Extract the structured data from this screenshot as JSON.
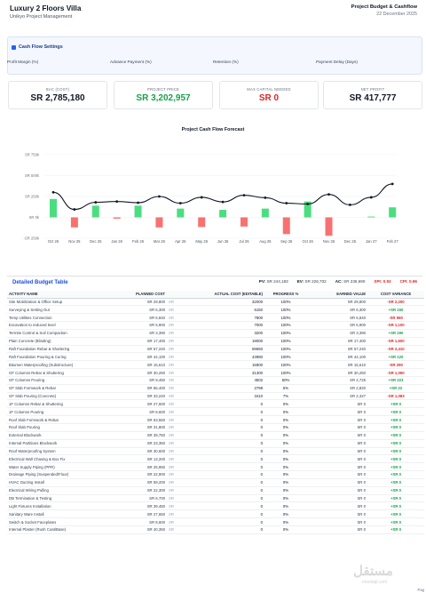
{
  "header": {
    "title": "Luxury 2 Floors Villa",
    "subtitle": "Unikyo Project Management",
    "report_title": "Project Budget & Cashflow",
    "date": "22 December 2025"
  },
  "settings": {
    "title": "Cash Flow Settings",
    "labels": [
      "Profit Margin (%)",
      "Advance Payment (%)",
      "Retention (%)",
      "Payment Delay (Days)"
    ]
  },
  "cards": [
    {
      "label": "BAC (COST)",
      "value": "SR 2,785,180",
      "color": "#111827"
    },
    {
      "label": "PROJECT PRICE",
      "value": "SR 3,202,957",
      "color": "#16a34a"
    },
    {
      "label": "MAX CAPITAL NEEDED",
      "value": "SR 0",
      "color": "#dc2626"
    },
    {
      "label": "NET PROFIT",
      "value": "SR 417,777",
      "color": "#111827"
    }
  ],
  "chart_data": {
    "type": "bar",
    "title": "Project Cash Flow Forecast",
    "y_ticks": [
      "SR 750k",
      "SR 500k",
      "SR 250k",
      "SR 0k",
      "-SR 250k"
    ],
    "ylim": [
      -250000,
      750000
    ],
    "categories": [
      "Oct 25",
      "Nov 25",
      "Dec 25",
      "Jan 26",
      "Feb 26",
      "Mar 26",
      "Apr 26",
      "May 26",
      "Jun 26",
      "Jul 26",
      "Aug 26",
      "Sep 26",
      "Oct 26",
      "Nov 26",
      "Dec 26",
      "Jan 27",
      "Feb 27"
    ],
    "tick_labels": [
      "Oct 25",
      "Nov 25",
      "Dec 25",
      "Jan 26",
      "Feb 26",
      "Mar 26",
      "Apr 26",
      "May 26",
      "Jun 26",
      "Jul 26",
      "Aug 26",
      "Sep 26",
      "Oct 26",
      "Nov 26",
      "Dec 26",
      "Jan 27",
      "Feb 27"
    ],
    "series": [
      {
        "values": [
          220000,
          -120000,
          140000,
          -15000,
          140000,
          -120000,
          105000,
          -115000,
          90000,
          -110000,
          105000,
          -200000,
          190000,
          -220000,
          0,
          10000,
          120000
        ],
        "color_positive": "#4ade80",
        "color_negative": "#f87171"
      },
      {
        "values": [
          300000,
          95000,
          180000,
          190000,
          175000,
          250000,
          170000,
          240000,
          185000,
          265000,
          235000,
          170000,
          160000,
          275000,
          150000,
          240000,
          400000
        ],
        "color": "#111827"
      }
    ]
  },
  "budget": {
    "title": "Detailed Budget Table",
    "stats": [
      {
        "label": "PV:",
        "value": "SR 244,183",
        "red": false
      },
      {
        "label": "EV:",
        "value": "SR 226,702",
        "red": false
      },
      {
        "label": "AC:",
        "value": "SR 236,690",
        "red": false
      },
      {
        "label": "SPI:",
        "value": "0.93",
        "red": true
      },
      {
        "label": "CPI:",
        "value": "0.96",
        "red": true
      }
    ],
    "columns": [
      "ACTIVITY NAME",
      "PLANNED COST",
      "ACTUAL COST (EDITABLE)",
      "PROGRESS %",
      "EARNED VALUE",
      "COST VARIANCE"
    ],
    "rows": [
      [
        "Site Mobilization & Office Setup",
        "SR 29,800",
        "SR",
        "32000",
        "100%",
        "SR 29,800",
        "-SR 2,200"
      ],
      [
        "Surveying & Setting Out",
        "SR 6,300",
        "SR",
        "6150",
        "100%",
        "SR 6,300",
        "+SR 150"
      ],
      [
        "Temp Utilities Connection",
        "SR 6,840",
        "SR",
        "7800",
        "100%",
        "SR 6,840",
        "-SR 960"
      ],
      [
        "Excavation to reduced level",
        "SR 5,900",
        "SR",
        "7000",
        "100%",
        "SR 5,900",
        "-SR 1,100"
      ],
      [
        "Termite Control & Soil Compaction",
        "SR 3,390",
        "SR",
        "3200",
        "100%",
        "SR 3,390",
        "+SR 190"
      ],
      [
        "Plain Concrete (Blinding)",
        "SR 17,400",
        "SR",
        "19000",
        "100%",
        "SR 17,400",
        "-SR 1,600"
      ],
      [
        "Raft Foundation Rebar & Shuttering",
        "SR 57,240",
        "SR",
        "59650",
        "100%",
        "SR 57,240",
        "-SR 2,410"
      ],
      [
        "Raft Foundation Pouring & Curing",
        "SR 44,100",
        "SR",
        "43980",
        "100%",
        "SR 44,100",
        "+SR 120"
      ],
      [
        "Bitumen Waterproofing (Substructure)",
        "SR 15,610",
        "SR",
        "15900",
        "100%",
        "SR 15,610",
        "-SR 290"
      ],
      [
        "GF Columns Rebar & Shuttering",
        "SR 30,250",
        "SR",
        "31300",
        "100%",
        "SR 30,250",
        "-SR 1,050"
      ],
      [
        "GF Columns Pouring",
        "SR 9,450",
        "SR",
        "4502",
        "50%",
        "SR 4,725",
        "+SR 223"
      ],
      [
        "GF Slab Formwork & Rebar",
        "SR 56,400",
        "SR",
        "2798",
        "5%",
        "SR 2,820",
        "+SR 22"
      ],
      [
        "GF Slab Pouring (Concrete)",
        "SR 33,240",
        "SR",
        "3410",
        "7%",
        "SR 2,327",
        "-SR 1,083"
      ],
      [
        "1F Columns Rebar & Shuttering",
        "SR 27,600",
        "SR",
        "0",
        "0%",
        "SR 0",
        "+SR 0"
      ],
      [
        "1F Columns Pouring",
        "SR 8,600",
        "SR",
        "0",
        "0%",
        "SR 0",
        "+SR 0"
      ],
      [
        "Roof Slab Formwork & Rebar",
        "SR 53,550",
        "SR",
        "0",
        "0%",
        "SR 0",
        "+SR 0"
      ],
      [
        "Roof Slab Pouring",
        "SR 31,800",
        "SR",
        "0",
        "0%",
        "SR 0",
        "+SR 0"
      ],
      [
        "External Blockwork",
        "SR 39,750",
        "SR",
        "0",
        "0%",
        "SR 0",
        "+SR 0"
      ],
      [
        "Internal Partitions Blockwork",
        "SR 23,350",
        "SR",
        "0",
        "0%",
        "SR 0",
        "+SR 0"
      ],
      [
        "Roof Waterproofing System",
        "SR 30,600",
        "SR",
        "0",
        "0%",
        "SR 0",
        "+SR 0"
      ],
      [
        "Electrical Wall Chasing & Box Fix",
        "SR 13,200",
        "SR",
        "0",
        "0%",
        "SR 0",
        "+SR 0"
      ],
      [
        "Water Supply Piping (PPR)",
        "SR 25,950",
        "SR",
        "0",
        "0%",
        "SR 0",
        "+SR 0"
      ],
      [
        "Drainage Piping (Suspended/Floor)",
        "SR 22,900",
        "SR",
        "0",
        "0%",
        "SR 0",
        "+SR 0"
      ],
      [
        "HVAC Ducting Install",
        "SR 59,200",
        "SR",
        "0",
        "0%",
        "SR 0",
        "+SR 0"
      ],
      [
        "Electrical Wiring Pulling",
        "SR 22,300",
        "SR",
        "0",
        "0%",
        "SR 0",
        "+SR 0"
      ],
      [
        "DB Termination & Testing",
        "SR 6,700",
        "SR",
        "0",
        "0%",
        "SR 0",
        "+SR 0"
      ],
      [
        "Light Fixtures Installation",
        "SR 39,450",
        "SR",
        "0",
        "0%",
        "SR 0",
        "+SR 0"
      ],
      [
        "Sanitary Ware Install",
        "SR 27,650",
        "SR",
        "0",
        "0%",
        "SR 0",
        "+SR 0"
      ],
      [
        "Switch & Socket Faceplates",
        "SR 8,600",
        "SR",
        "0",
        "0%",
        "SR 0",
        "+SR 0"
      ],
      [
        "Internal Plaster (Rush Coat/Base)",
        "SR 40,350",
        "SR",
        "0",
        "0%",
        "SR 0",
        "+SR 0"
      ]
    ]
  },
  "footer": {
    "cut_text": "Pag",
    "watermark": "مستقل",
    "watermark_sub": "mostaql.com"
  }
}
